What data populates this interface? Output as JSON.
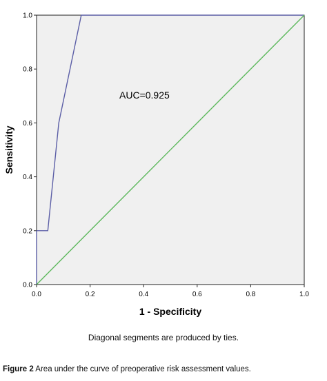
{
  "chart_data": {
    "type": "line",
    "title": "",
    "xlabel": "1 - Specificity",
    "ylabel": "Sensitivity",
    "xlim": [
      0,
      1
    ],
    "ylim": [
      0,
      1
    ],
    "x_ticks": [
      "0.0",
      "0.2",
      "0.4",
      "0.6",
      "0.8",
      "1.0"
    ],
    "y_ticks": [
      "0.0",
      "0.2",
      "0.4",
      "0.6",
      "0.8",
      "1.0"
    ],
    "series": [
      {
        "color": "#5b5ea6",
        "points": [
          [
            0,
            0
          ],
          [
            0,
            0.2
          ],
          [
            0.042,
            0.2
          ],
          [
            0.083,
            0.6
          ],
          [
            0.167,
            1.0
          ],
          [
            1.0,
            1.0
          ]
        ]
      },
      {
        "color": "#5cb85c",
        "points": [
          [
            0,
            0
          ],
          [
            1,
            1
          ]
        ]
      }
    ],
    "annotation": "AUC=0.925",
    "plot_background": "#f0f0f0",
    "grid": false,
    "legend": "none"
  },
  "note": "Diagonal segments are produced by ties.",
  "caption": {
    "label": "Figure 2",
    "text": "Area under the curve of preoperative risk assessment values."
  }
}
